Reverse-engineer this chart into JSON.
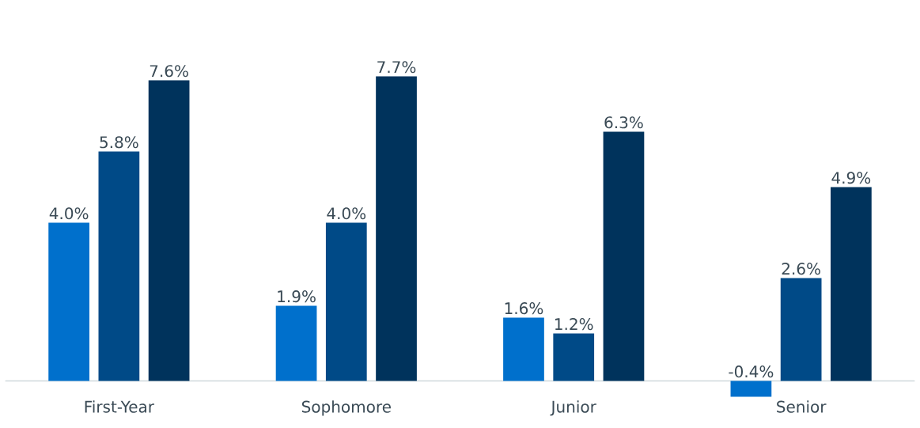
{
  "chart_data": {
    "type": "bar",
    "categories": [
      "First-Year",
      "Sophomore",
      "Junior",
      "Senior"
    ],
    "series": [
      {
        "color": "#0070cc",
        "values": [
          4.0,
          1.9,
          1.6,
          -0.4
        ],
        "value_labels": [
          "4.0%",
          "1.9%",
          "1.6%",
          "-0.4%"
        ]
      },
      {
        "color": "#004a87",
        "values": [
          5.8,
          4.0,
          1.2,
          2.6
        ],
        "value_labels": [
          "5.8%",
          "4.0%",
          "1.2%",
          "2.6%"
        ]
      },
      {
        "color": "#00335c",
        "values": [
          7.6,
          7.7,
          6.3,
          4.9
        ],
        "value_labels": [
          "7.6%",
          "7.7%",
          "6.3%",
          "4.9%"
        ]
      }
    ],
    "data_labels": false
  }
}
